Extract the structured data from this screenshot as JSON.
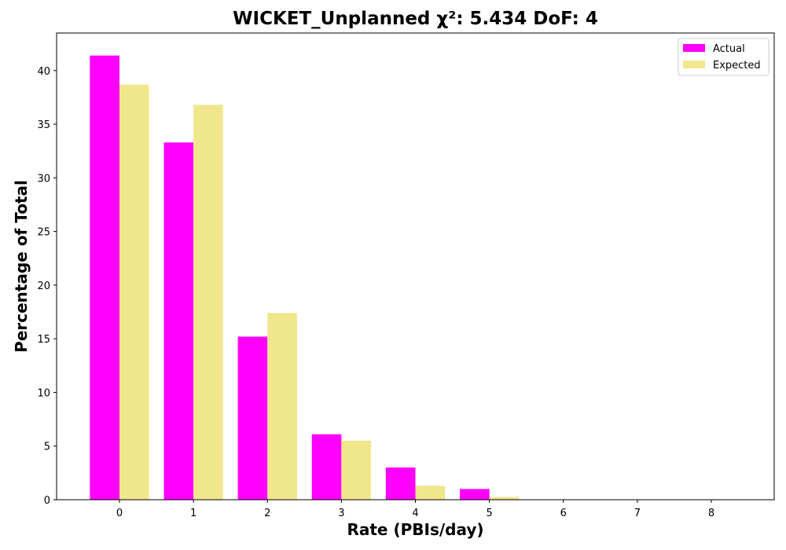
{
  "chart_data": {
    "type": "bar",
    "title": "WICKET_Unplanned χ²: 5.434 DoF: 4",
    "xlabel": "Rate (PBIs/day)",
    "ylabel": "Percentage of Total",
    "categories": [
      "0",
      "1",
      "2",
      "3",
      "4",
      "5",
      "6",
      "7",
      "8"
    ],
    "series": [
      {
        "name": "Actual",
        "color": "#ff00ff",
        "values": [
          41.4,
          33.3,
          15.2,
          6.1,
          3.0,
          1.0,
          0,
          0,
          0
        ]
      },
      {
        "name": "Expected",
        "color": "#f0e68c",
        "values": [
          38.7,
          36.8,
          17.4,
          5.5,
          1.3,
          0.25,
          0.04,
          0,
          0
        ]
      }
    ],
    "xlim": [
      -0.85,
      8.85
    ],
    "ylim": [
      0,
      43.5
    ],
    "yticks": [
      0,
      5,
      10,
      15,
      20,
      25,
      30,
      35,
      40
    ],
    "grid": false,
    "legend_position": "top-right"
  }
}
